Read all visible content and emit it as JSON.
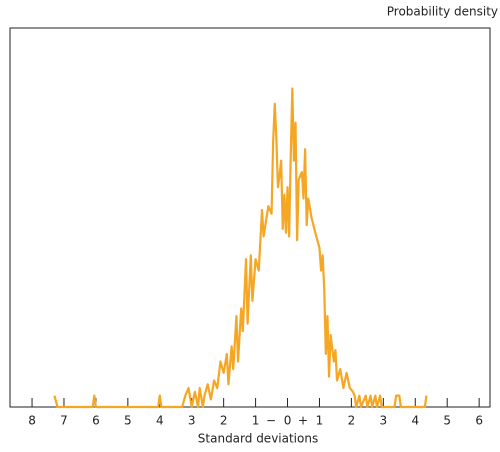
{
  "chart_data": {
    "type": "line",
    "y_label": "Probability density",
    "x_label": "Standard deviations",
    "annotations": [
      "−",
      "+"
    ],
    "color": "#f5a623",
    "xlim": [
      -8.69,
      6.34
    ],
    "ylim": [
      0,
      1
    ],
    "xticks": [
      {
        "value": -8,
        "label": "8"
      },
      {
        "value": -7,
        "label": "7"
      },
      {
        "value": -6,
        "label": "6"
      },
      {
        "value": -5,
        "label": "5"
      },
      {
        "value": -4,
        "label": "4"
      },
      {
        "value": -3,
        "label": "3"
      },
      {
        "value": -2,
        "label": "2"
      },
      {
        "value": -1,
        "label": "1"
      },
      0,
      1,
      2,
      3,
      4,
      5,
      6
    ],
    "x": [
      -7.3,
      -7.2,
      -6.1,
      -6.05,
      -6.0,
      -4.05,
      -4.0,
      -3.95,
      -3.3,
      -3.2,
      -3.1,
      -3.0,
      -2.9,
      -2.8,
      -2.75,
      -2.65,
      -2.6,
      -2.5,
      -2.4,
      -2.3,
      -2.2,
      -2.1,
      -2.0,
      -1.9,
      -1.85,
      -1.75,
      -1.7,
      -1.6,
      -1.55,
      -1.45,
      -1.4,
      -1.3,
      -1.25,
      -1.15,
      -1.1,
      -1.0,
      -0.9,
      -0.8,
      -0.75,
      -0.6,
      -0.5,
      -0.45,
      -0.4,
      -0.35,
      -0.3,
      -0.25,
      -0.2,
      -0.15,
      -0.1,
      -0.05,
      0.0,
      0.05,
      0.1,
      0.15,
      0.2,
      0.25,
      0.3,
      0.35,
      0.45,
      0.5,
      0.55,
      0.6,
      0.65,
      0.75,
      0.9,
      1.0,
      1.05,
      1.1,
      1.15,
      1.2,
      1.25,
      1.3,
      1.35,
      1.45,
      1.5,
      1.55,
      1.65,
      1.75,
      1.85,
      1.95,
      2.05,
      2.1,
      2.15,
      2.25,
      2.3,
      2.45,
      2.5,
      2.6,
      2.65,
      2.75,
      2.8,
      2.9,
      2.95,
      3.35,
      3.4,
      3.5,
      3.55,
      4.3,
      4.35
    ],
    "values": [
      0.03,
      0,
      0,
      0.03,
      0,
      0,
      0.03,
      0,
      0,
      0.03,
      0.05,
      0,
      0.04,
      0,
      0.05,
      0,
      0.03,
      0.06,
      0.02,
      0.07,
      0.05,
      0.12,
      0.09,
      0.14,
      0.06,
      0.16,
      0.1,
      0.24,
      0.12,
      0.26,
      0.2,
      0.39,
      0.22,
      0.4,
      0.28,
      0.39,
      0.36,
      0.52,
      0.45,
      0.53,
      0.51,
      0.7,
      0.8,
      0.71,
      0.58,
      0.61,
      0.65,
      0.47,
      0.56,
      0.46,
      0.58,
      0.45,
      0.66,
      0.84,
      0.65,
      0.75,
      0.44,
      0.6,
      0.62,
      0.55,
      0.68,
      0.48,
      0.55,
      0.5,
      0.45,
      0.42,
      0.36,
      0.4,
      0.31,
      0.14,
      0.24,
      0.08,
      0.19,
      0.12,
      0.15,
      0.07,
      0.1,
      0.05,
      0.09,
      0.05,
      0.04,
      0.03,
      0,
      0.03,
      0,
      0.03,
      0,
      0.03,
      0,
      0.03,
      0,
      0.03,
      0,
      0,
      0.03,
      0.03,
      0,
      0,
      0.03
    ]
  }
}
